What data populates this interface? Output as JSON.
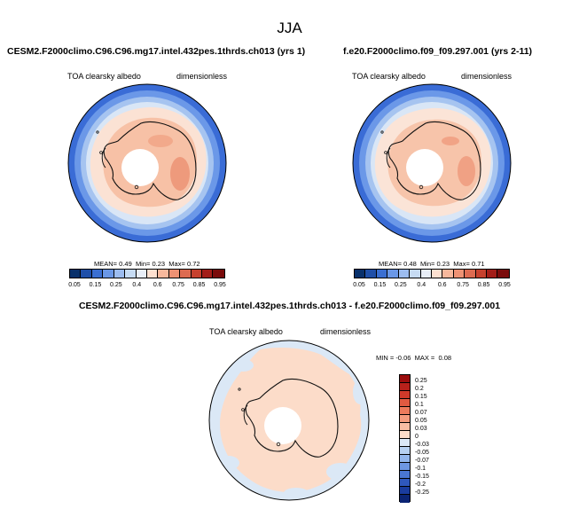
{
  "page": {
    "title": "JJA"
  },
  "colors": {
    "land_outline": "#111111",
    "ocean_bg": "#ffffff"
  },
  "chart_data": [
    {
      "type": "heatmap",
      "projection": "south-polar-stereographic",
      "title": "CESM2.F2000climo.C96.C96.mg17.intel.432pes.1thrds.ch013 (yrs 1)",
      "left_label": "TOA clearsky albedo",
      "right_label": "dimensionless",
      "stats": {
        "mean_label": "MEAN=",
        "mean": "0.49",
        "min_label": "Min=",
        "min": "0.23",
        "max_label": "Max=",
        "max": "0.72"
      },
      "colorbar": {
        "levels": [
          "0.05",
          "0.15",
          "0.25",
          "0.4",
          "0.6",
          "0.75",
          "0.85",
          "0.95"
        ],
        "colors": [
          "#08306b",
          "#1f4fa8",
          "#3b6fd1",
          "#6a97e6",
          "#9cbcef",
          "#c6dbf3",
          "#e8eef7",
          "#fde0d0",
          "#f7b89c",
          "#ee9274",
          "#dd6b51",
          "#c6412e",
          "#a31d18",
          "#7a0b0b"
        ]
      }
    },
    {
      "type": "heatmap",
      "projection": "south-polar-stereographic",
      "title": "f.e20.F2000climo.f09_f09.297.001 (yrs 2-11)",
      "left_label": "TOA clearsky albedo",
      "right_label": "dimensionless",
      "stats": {
        "mean_label": "MEAN=",
        "mean": "0.48",
        "min_label": "Min=",
        "min": "0.23",
        "max_label": "Max=",
        "max": "0.71"
      },
      "colorbar": {
        "levels": [
          "0.05",
          "0.15",
          "0.25",
          "0.4",
          "0.6",
          "0.75",
          "0.85",
          "0.95"
        ],
        "colors": [
          "#08306b",
          "#1f4fa8",
          "#3b6fd1",
          "#6a97e6",
          "#9cbcef",
          "#c6dbf3",
          "#e8eef7",
          "#fde0d0",
          "#f7b89c",
          "#ee9274",
          "#dd6b51",
          "#c6412e",
          "#a31d18",
          "#7a0b0b"
        ]
      }
    },
    {
      "type": "heatmap",
      "projection": "south-polar-stereographic",
      "title": "CESM2.F2000climo.C96.C96.mg17.intel.432pes.1thrds.ch013 - f.e20.F2000climo.f09_f09.297.001",
      "left_label": "TOA clearsky albedo",
      "right_label": "dimensionless",
      "stats": {
        "min_label": "MIN =",
        "min": "-0.06",
        "max_label": "MAX =",
        "max": "0.08"
      },
      "colorbar": {
        "levels": [
          "0.25",
          "0.2",
          "0.15",
          "0.1",
          "0.07",
          "0.05",
          "0.03",
          "0",
          "-0.03",
          "-0.05",
          "-0.07",
          "-0.1",
          "-0.15",
          "-0.2",
          "-0.25"
        ],
        "colors": [
          "#9b0d0d",
          "#b8211b",
          "#cf3a2a",
          "#e05a41",
          "#ec7b5c",
          "#f49c7e",
          "#f9bda3",
          "#fcdcc9",
          "#dbe8f6",
          "#b7d1f1",
          "#93b6ec",
          "#6e97e2",
          "#4a76d2",
          "#2f58bd",
          "#1a3c9e",
          "#0b2474"
        ]
      }
    }
  ]
}
